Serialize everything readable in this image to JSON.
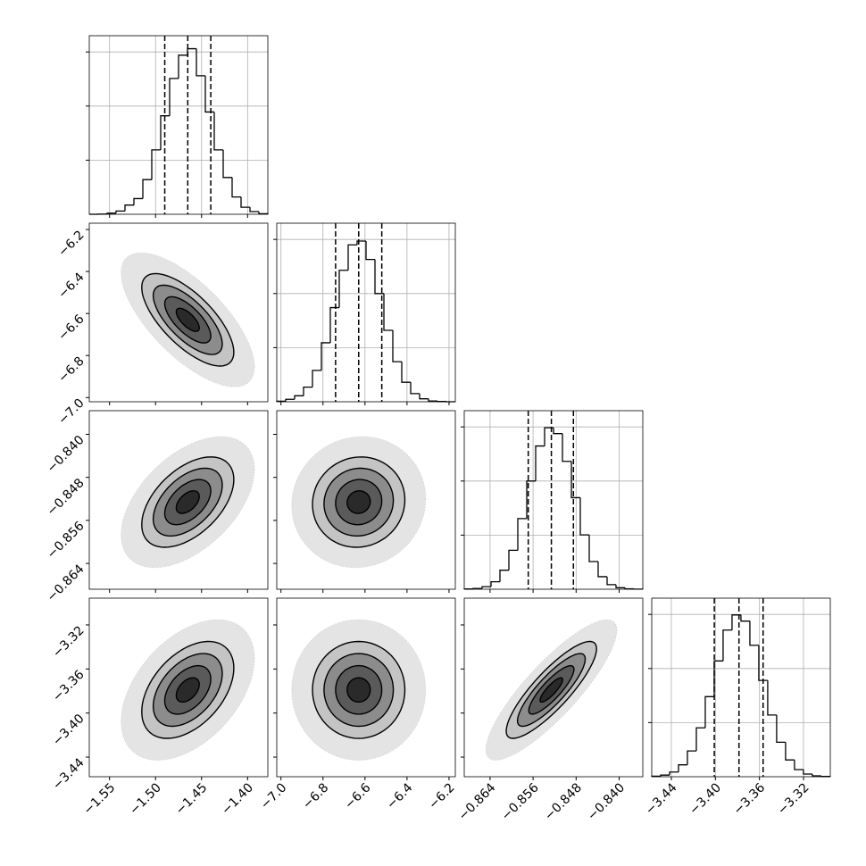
{
  "chart_data": {
    "type": "corner",
    "grid": true,
    "hist_ylim": [
      0,
      3300
    ],
    "hist_yticks": [
      1000,
      2000,
      3000
    ],
    "levels": [
      0.5,
      1,
      1.5,
      2
    ],
    "params": [
      {
        "lim": [
          -1.572,
          -1.378
        ],
        "ticks": [
          {
            "value": -1.55,
            "label": "−1.55"
          },
          {
            "value": -1.5,
            "label": "−1.50"
          },
          {
            "value": -1.45,
            "label": "−1.45"
          },
          {
            "value": -1.4,
            "label": "−1.40"
          }
        ],
        "bins": [
          -1.572,
          -1.5623,
          -1.5526,
          -1.5429,
          -1.5332,
          -1.5235,
          -1.5138,
          -1.5041,
          -1.4944,
          -1.4847,
          -1.475,
          -1.4653,
          -1.4556,
          -1.4459,
          -1.4362,
          -1.4265,
          -1.4168,
          -1.4071,
          -1.3974,
          -1.3877,
          -1.378
        ],
        "counts": [
          0,
          3,
          20,
          60,
          170,
          290,
          640,
          1190,
          1820,
          2510,
          2940,
          3060,
          2560,
          1890,
          1190,
          680,
          320,
          130,
          50,
          10
        ],
        "quantiles": [
          -1.49,
          -1.465,
          -1.44
        ],
        "mean": -1.465,
        "sd": 0.025
      },
      {
        "lim": [
          -7.02,
          -6.17
        ],
        "ticks": [
          {
            "value": -7.0,
            "label": "−7.0"
          },
          {
            "value": -6.8,
            "label": "−6.8"
          },
          {
            "value": -6.6,
            "label": "−6.6"
          },
          {
            "value": -6.4,
            "label": "−6.4"
          },
          {
            "value": -6.2,
            "label": "−6.2"
          }
        ],
        "bins": [
          -7.02,
          -6.9775,
          -6.935,
          -6.8925,
          -6.85,
          -6.8075,
          -6.765,
          -6.7225,
          -6.68,
          -6.6375,
          -6.595,
          -6.5525,
          -6.51,
          -6.4675,
          -6.425,
          -6.3825,
          -6.34,
          -6.2975,
          -6.255,
          -6.2125,
          -6.17
        ],
        "counts": [
          10,
          45,
          110,
          270,
          580,
          1090,
          1740,
          2430,
          2900,
          2970,
          2630,
          2000,
          1320,
          740,
          360,
          150,
          55,
          15,
          5,
          0
        ],
        "quantiles": [
          -6.74,
          -6.63,
          -6.52
        ],
        "mean": -6.63,
        "sd": 0.11
      },
      {
        "lim": [
          -0.8688,
          -0.8356
        ],
        "ticks": [
          {
            "value": -0.864,
            "label": "−0.864"
          },
          {
            "value": -0.856,
            "label": "−0.856"
          },
          {
            "value": -0.848,
            "label": "−0.848"
          },
          {
            "value": -0.84,
            "label": "−0.840"
          }
        ],
        "bins": [
          -0.8688,
          -0.86714,
          -0.86548,
          -0.86382,
          -0.86216,
          -0.8605,
          -0.85884,
          -0.85718,
          -0.85552,
          -0.85386,
          -0.8522,
          -0.85054,
          -0.84888,
          -0.84722,
          -0.84556,
          -0.8439,
          -0.84224,
          -0.84058,
          -0.83892,
          -0.83726,
          -0.8356
        ],
        "counts": [
          5,
          15,
          48,
          138,
          352,
          720,
          1306,
          2000,
          2647,
          2985,
          2876,
          2364,
          1692,
          1005,
          511,
          232,
          85,
          28,
          8,
          2
        ],
        "quantiles": [
          -0.8569,
          -0.8526,
          -0.8485
        ],
        "mean": -0.8526,
        "sd": 0.0042
      },
      {
        "lim": [
          -3.4578,
          -3.2957
        ],
        "ticks": [
          {
            "value": -3.44,
            "label": "−3.44"
          },
          {
            "value": -3.4,
            "label": "−3.40"
          },
          {
            "value": -3.36,
            "label": "−3.36"
          },
          {
            "value": -3.32,
            "label": "−3.32"
          }
        ],
        "bins": [
          -3.4578,
          -3.4497,
          -3.4416,
          -3.4335,
          -3.4254,
          -3.4173,
          -3.4092,
          -3.4011,
          -3.393,
          -3.3849,
          -3.3768,
          -3.3687,
          -3.3606,
          -3.3525,
          -3.3444,
          -3.3363,
          -3.3282,
          -3.3201,
          -3.312,
          -3.3039,
          -3.2958
        ],
        "counts": [
          9,
          30,
          87,
          220,
          476,
          903,
          1480,
          2140,
          2710,
          2990,
          2876,
          2430,
          1780,
          1140,
          637,
          310,
          132,
          50,
          16,
          5
        ],
        "quantiles": [
          -3.401,
          -3.3786,
          -3.3567
        ],
        "mean": -3.379,
        "sd": 0.022
      }
    ],
    "pairs": [
      {
        "x": 0,
        "y": 1,
        "rho": -0.7
      },
      {
        "x": 0,
        "y": 2,
        "rho": 0.5
      },
      {
        "x": 1,
        "y": 2,
        "rho": 0.05
      },
      {
        "x": 0,
        "y": 3,
        "rho": 0.45
      },
      {
        "x": 1,
        "y": 3,
        "rho": 0.0
      },
      {
        "x": 2,
        "y": 3,
        "rho": 0.85
      }
    ]
  }
}
